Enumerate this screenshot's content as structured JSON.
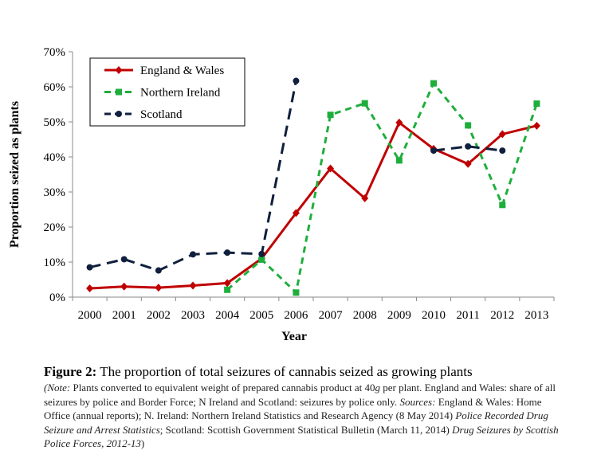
{
  "chart_data": {
    "type": "line",
    "x": [
      2000,
      2001,
      2002,
      2003,
      2004,
      2005,
      2006,
      2007,
      2008,
      2009,
      2010,
      2011,
      2012,
      2013
    ],
    "xlabel": "Year",
    "ylabel": "Proportion seized as plants",
    "ylim": [
      0,
      70
    ],
    "yticks": [
      "0%",
      "10%",
      "20%",
      "30%",
      "40%",
      "50%",
      "60%",
      "70%"
    ],
    "grid": false,
    "legend_position": "top-left",
    "series": [
      {
        "name": "England & Wales",
        "color": "#c00000",
        "style": "solid",
        "marker": "diamond",
        "values": [
          2.5,
          3.0,
          2.7,
          3.3,
          4.0,
          11.0,
          24.0,
          36.7,
          28.2,
          49.8,
          42.3,
          38.0,
          46.5,
          48.9
        ]
      },
      {
        "name": "Northern Ireland",
        "color": "#1fae3c",
        "style": "dashed",
        "marker": "square",
        "values": [
          null,
          null,
          null,
          null,
          2.1,
          10.7,
          1.3,
          52.0,
          55.3,
          39.0,
          61.0,
          49.0,
          26.3,
          55.2
        ]
      },
      {
        "name": "Scotland",
        "color": "#0f1f3d",
        "style": "dashed",
        "marker": "circle",
        "values": [
          8.5,
          10.8,
          7.6,
          12.2,
          12.7,
          12.3,
          61.7,
          null,
          null,
          null,
          41.8,
          43.0,
          41.8,
          null
        ]
      }
    ]
  },
  "caption": {
    "label": "Figure 2:",
    "title": "The proportion of total seizures of cannabis seized as growing plants",
    "note_label": "(Note:",
    "note_1": "Plants converted to equivalent weight of prepared cannabis product at 40",
    "note_unit": "g",
    "note_2": "per plant. England and Wales: share of all seizures by police and Border Force; N Ireland and Scotland: seizures by police only.",
    "sources_label": "Sources:",
    "sources_1": "England & Wales: Home Office (annual reports); N. Ireland: Northern Ireland Statistics and Research Agency (8 May 2014)",
    "sources_2_italic": "Police Recorded Drug Seizure and Arrest Statistics",
    "sources_3": "; Scotland: Scottish Government Statistical Bulletin (March 11, 2014)",
    "sources_4_italic": "Drug Seizures by Scottish Police Forces, 2012-13",
    "close": ")"
  }
}
